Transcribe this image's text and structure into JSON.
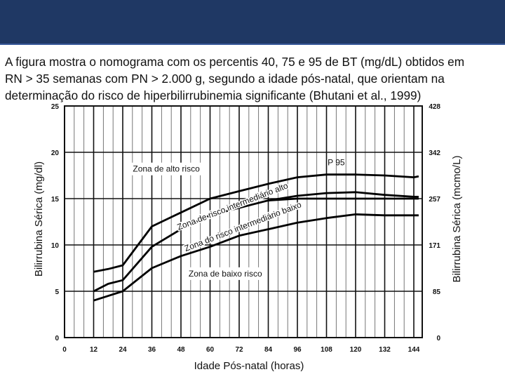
{
  "slide": {
    "header_color": "#1f3864",
    "header_line_color": "#3a5a9a",
    "caption_lines": [
      "A figura mostra o nomograma com os percentis 40, 75 e 95 de BT (mg/dL) obtidos em",
      "RN > 35 semanas com PN > 2.000 g, segundo a idade pós-natal, que orientam na",
      "determinação do risco de hiperbilirrubinemia significante (Bhutani et al., 1999)"
    ]
  },
  "chart_data": {
    "type": "line",
    "xlabel": "Idade Pós-natal (horas)",
    "ylabel": "Bilirrubina Sérica (mg/dl)",
    "y2label": "Bilirrubina Sérica (mcmo/L)",
    "x_ticks": [
      0,
      12,
      24,
      36,
      48,
      60,
      72,
      84,
      96,
      108,
      120,
      132,
      144
    ],
    "y_ticks": [
      0,
      5,
      10,
      15,
      20,
      25
    ],
    "y2_ticks": [
      {
        "value": 0,
        "label": "0"
      },
      {
        "value": 5,
        "label": "85"
      },
      {
        "value": 10,
        "label": "171"
      },
      {
        "value": 15,
        "label": "257"
      },
      {
        "value": 20,
        "label": "342"
      },
      {
        "value": 25,
        "label": "428"
      }
    ],
    "xlim": [
      0,
      150
    ],
    "ylim": [
      0,
      25
    ],
    "grid": true,
    "grid_minor_x_step": 4,
    "series": [
      {
        "name": "P 95",
        "x": [
          12,
          18,
          24,
          36,
          48,
          60,
          72,
          84,
          96,
          108,
          120,
          132,
          144,
          146
        ],
        "values": [
          7.1,
          7.4,
          7.8,
          12.0,
          13.5,
          15.0,
          15.8,
          16.6,
          17.3,
          17.6,
          17.6,
          17.5,
          17.3,
          17.4
        ]
      },
      {
        "name": "",
        "x": [
          12,
          18,
          24,
          36,
          48,
          60,
          72,
          84,
          96,
          108,
          120,
          132,
          144,
          146
        ],
        "values": [
          5.0,
          5.8,
          6.2,
          9.8,
          11.7,
          13.2,
          14.0,
          14.8,
          15.3,
          15.6,
          15.7,
          15.4,
          15.2,
          15.2
        ]
      },
      {
        "name": "",
        "x": [
          12,
          18,
          24,
          36,
          48,
          60,
          72,
          84,
          96,
          108,
          120,
          132,
          144,
          146
        ],
        "values": [
          4.0,
          4.5,
          5.0,
          7.5,
          8.8,
          9.8,
          11.0,
          11.7,
          12.4,
          12.9,
          13.3,
          13.2,
          13.2,
          13.2
        ]
      }
    ],
    "extra_line": {
      "x": [
        84,
        96,
        108,
        120,
        132,
        144,
        146
      ],
      "values": [
        14.8,
        15.0,
        15.0,
        15.0,
        15.0,
        15.0,
        15.0
      ]
    },
    "zone_labels": [
      {
        "text": "Zona de alto risco",
        "x": 27,
        "y": 17.9,
        "rotate": 0,
        "boxed": true
      },
      {
        "text": "Zona de risco intermediário alto",
        "x": 47,
        "y": 11.6,
        "rotate": -21,
        "boxed": false
      },
      {
        "text": "Zona do risco intermediário baixo",
        "x": 50,
        "y": 9.3,
        "rotate": -21,
        "boxed": false
      },
      {
        "text": "Zona de baixo risco",
        "x": 50,
        "y": 6.6,
        "rotate": 0,
        "boxed": true
      }
    ]
  }
}
